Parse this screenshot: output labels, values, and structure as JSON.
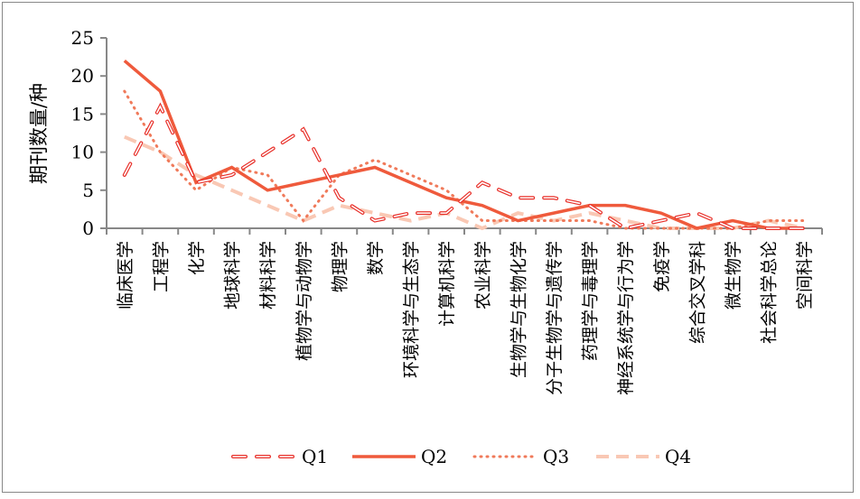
{
  "chart_data": {
    "type": "line",
    "title": "",
    "xlabel": "",
    "ylabel": "期刊数量/种",
    "ylim": [
      0,
      25
    ],
    "yticks": [
      0,
      5,
      10,
      15,
      20,
      25
    ],
    "grid": false,
    "legend_position": "bottom",
    "categories": [
      "临床医学",
      "工程学",
      "化学",
      "地球科学",
      "材料科学",
      "植物学与动物学",
      "物理学",
      "数学",
      "环境科学与生态学",
      "计算机科学",
      "农业科学",
      "生物学与生物化学",
      "分子生物学与遗传学",
      "药理学与毒理学",
      "神经系统学与行为学",
      "免疫学",
      "综合交叉学科",
      "微生物学",
      "社会科学总论",
      "空间科学"
    ],
    "series": [
      {
        "name": "Q1",
        "style": "dash-outline",
        "color": "#e8302a",
        "values": [
          7,
          16,
          6,
          7,
          10,
          13,
          4,
          1,
          2,
          2,
          6,
          4,
          4,
          3,
          0,
          1,
          2,
          0,
          0,
          0
        ]
      },
      {
        "name": "Q2",
        "style": "solid",
        "color": "#ef5a3c",
        "values": [
          22,
          18,
          6,
          8,
          5,
          6,
          7,
          8,
          6,
          4,
          3,
          1,
          2,
          3,
          3,
          2,
          0,
          1,
          0,
          0
        ]
      },
      {
        "name": "Q3",
        "style": "dot",
        "color": "#f07a5a",
        "values": [
          18,
          10,
          5,
          8,
          7,
          1,
          7,
          9,
          7,
          5,
          1,
          1,
          1,
          1,
          0,
          0,
          0,
          0,
          1,
          1
        ]
      },
      {
        "name": "Q4",
        "style": "dash",
        "color": "#f9c8b4",
        "values": [
          12,
          10,
          7,
          5,
          3,
          1,
          3,
          2,
          1,
          2,
          0,
          2,
          1,
          2,
          1,
          0,
          0,
          0,
          1,
          0
        ]
      }
    ]
  }
}
